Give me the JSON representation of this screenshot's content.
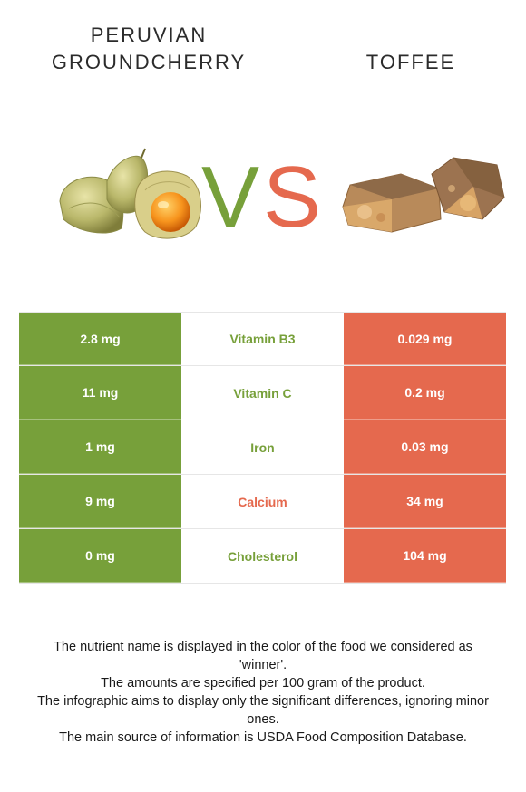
{
  "header": {
    "left_title_line1": "PERUVIAN",
    "left_title_line2": "GROUNDCHERRY",
    "right_title": "TOFFEE",
    "vs_v": "V",
    "vs_s": "S"
  },
  "colors": {
    "left_accent": "#77a03a",
    "right_accent": "#e5694e"
  },
  "images": {
    "left": "peruvian-groundcherry-icon",
    "right": "toffee-icon"
  },
  "rows": [
    {
      "left": "2.8 mg",
      "nutrient": "Vitamin B3",
      "right": "0.029 mg",
      "winner": "left"
    },
    {
      "left": "11 mg",
      "nutrient": "Vitamin C",
      "right": "0.2 mg",
      "winner": "left"
    },
    {
      "left": "1 mg",
      "nutrient": "Iron",
      "right": "0.03 mg",
      "winner": "left"
    },
    {
      "left": "9 mg",
      "nutrient": "Calcium",
      "right": "34 mg",
      "winner": "right"
    },
    {
      "left": "0 mg",
      "nutrient": "Cholesterol",
      "right": "104 mg",
      "winner": "left"
    }
  ],
  "notes": [
    "The nutrient name is displayed in the color of the food we considered as 'winner'.",
    "The amounts are specified per 100 gram of the product.",
    "The infographic aims to display only the significant differences, ignoring minor ones.",
    "The main source of information is USDA Food Composition Database."
  ]
}
